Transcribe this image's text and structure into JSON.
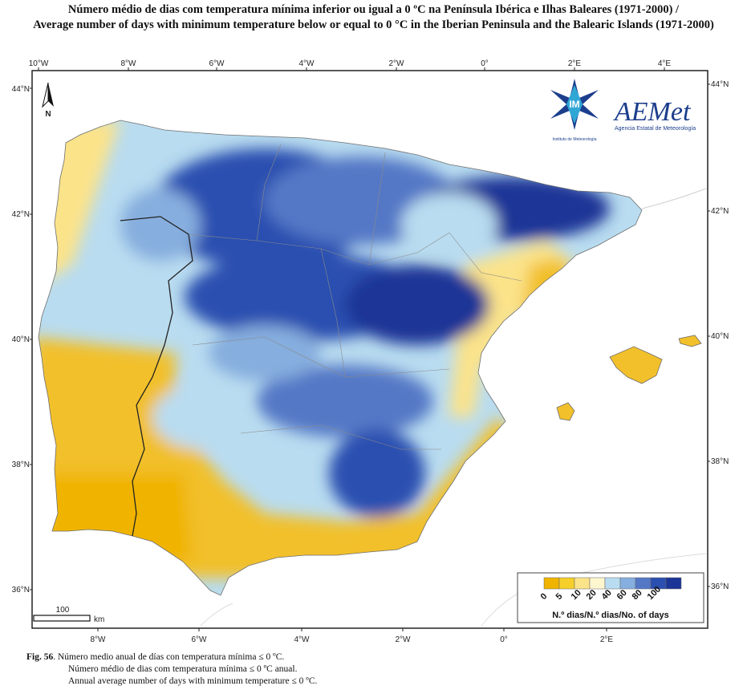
{
  "title": {
    "line1": "Número médio de dias com temperatura mínima inferior ou igual a 0 ºC na Península Ibérica e Ilhas Baleares (1971-2000) /",
    "line2": "Average number of days with minimum temperature below or equal to 0 °C in the Iberian Peninsula and the Balearic Islands (1971-2000)"
  },
  "axes": {
    "top_lon": [
      "10°W",
      "8°W",
      "6°W",
      "4°W",
      "2°W",
      "0°",
      "2°E",
      "4°E"
    ],
    "bottom_lon": [
      "8°W",
      "6°W",
      "4°W",
      "2°W",
      "0°",
      "2°E"
    ],
    "left_lat": [
      "44°N",
      "42°N",
      "40°N",
      "38°N",
      "36°N"
    ],
    "right_lat": [
      "44°N",
      "42°N",
      "40°N",
      "38°N",
      "36°N"
    ]
  },
  "north_arrow": {
    "label": "N",
    "icon": "north-arrow-icon"
  },
  "logos": {
    "im_caption": "Instituto de Meteorología",
    "aemet_name": "AEMet",
    "aemet_subtitle": "Agencia Estatal de Meteorología"
  },
  "scale_bar": {
    "value": "100",
    "unit": "km"
  },
  "legend": {
    "title": "N.º dias/N.º dias/No. of days",
    "classes": [
      {
        "label": "0",
        "color": "#f0b400"
      },
      {
        "label": "5",
        "color": "#f6cf2a"
      },
      {
        "label": "10",
        "color": "#fbe38a"
      },
      {
        "label": "20",
        "color": "#fdf6cf"
      },
      {
        "label": "40",
        "color": "#b9dcf0"
      },
      {
        "label": "60",
        "color": "#86aede"
      },
      {
        "label": "80",
        "color": "#5478c6"
      },
      {
        "label": "100",
        "color": "#2b4fb0"
      },
      {
        "label": "",
        "color": "#1b3596"
      }
    ]
  },
  "caption": {
    "fig": "Fig. 56",
    "line1": ". Número medio anual de días con temperatura mínima ≤ 0 ºC.",
    "line2": "Número médio de dias com temperatura mínima ≤ 0 ºC anual.",
    "line3": "Annual average number of days with minimum temperature ≤ 0 ºC."
  }
}
